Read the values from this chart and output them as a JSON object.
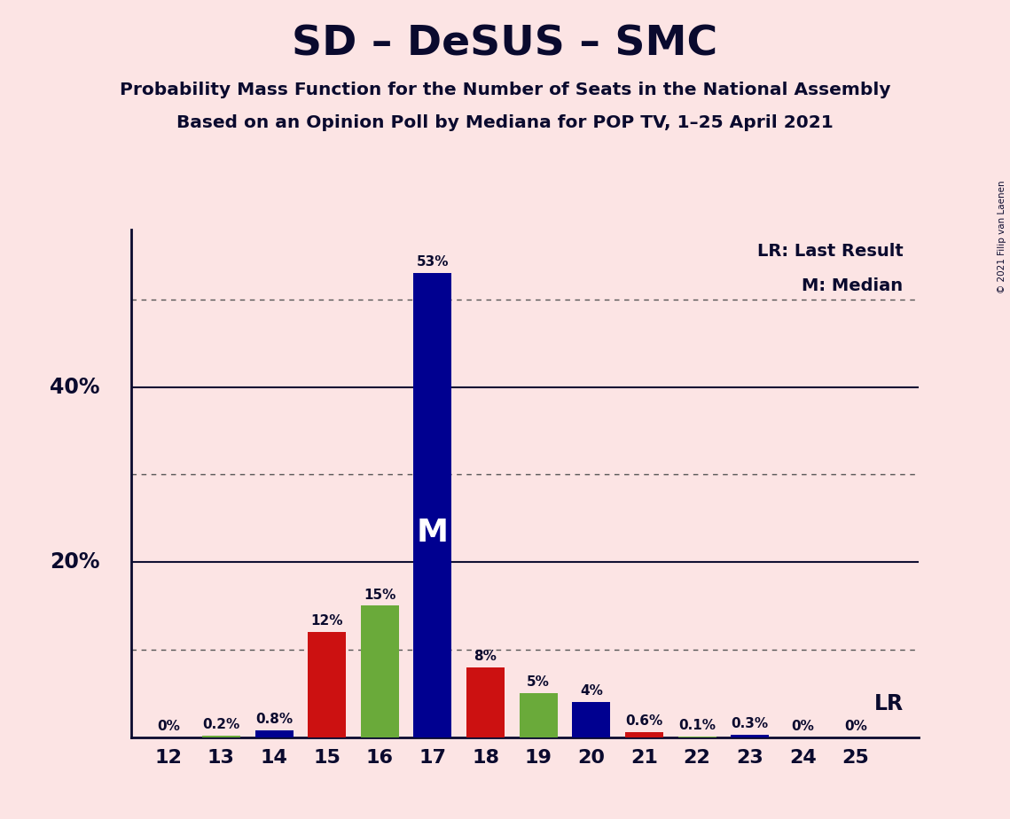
{
  "title": "SD – DeSUS – SMC",
  "subtitle1": "Probability Mass Function for the Number of Seats in the National Assembly",
  "subtitle2": "Based on an Opinion Poll by Mediana for POP TV, 1–25 April 2021",
  "copyright": "© 2021 Filip van Laenen",
  "seats": [
    12,
    13,
    14,
    15,
    16,
    17,
    18,
    19,
    20,
    21,
    22,
    23,
    24,
    25
  ],
  "values": [
    0.0,
    0.2,
    0.8,
    12.0,
    15.0,
    53.0,
    8.0,
    5.0,
    4.0,
    0.6,
    0.1,
    0.3,
    0.0,
    0.0
  ],
  "labels": [
    "0%",
    "0.2%",
    "0.8%",
    "12%",
    "15%",
    "53%",
    "8%",
    "5%",
    "4%",
    "0.6%",
    "0.1%",
    "0.3%",
    "0%",
    "0%"
  ],
  "bar_colors": [
    "#6aaa3a",
    "#6aaa3a",
    "#000090",
    "#cc1111",
    "#6aaa3a",
    "#000090",
    "#cc1111",
    "#6aaa3a",
    "#000090",
    "#cc1111",
    "#6aaa3a",
    "#000090",
    "#6aaa3a",
    "#6aaa3a"
  ],
  "median_seat": 17,
  "median_label": "M",
  "lr_label": "LR",
  "legend_lr": "LR: Last Result",
  "legend_m": "M: Median",
  "background_color": "#fce4e4",
  "ylim": [
    0,
    58
  ],
  "grid_dotted": [
    10,
    30,
    50
  ],
  "grid_solid": [
    20,
    40
  ],
  "ylabel_20": "20%",
  "ylabel_40": "40%"
}
